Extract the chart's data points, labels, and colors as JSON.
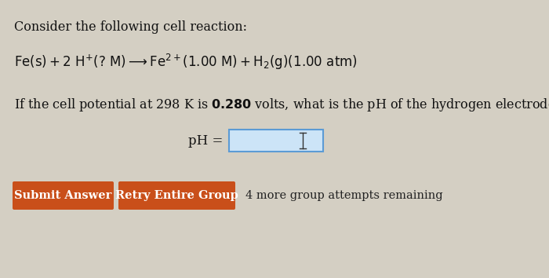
{
  "background_color": "#d4cfc3",
  "title_text": "Consider the following cell reaction:",
  "question_text": "If the cell potential at 298 K is ",
  "question_bold": "0.280",
  "question_text2": " volts, what is the pH of the hydrogen electrode?",
  "ph_label": "pH = ",
  "input_box_color": "#cce4f7",
  "input_box_border": "#5b9bd5",
  "btn1_text": "Submit Answer",
  "btn2_text": "Retry Entire Group",
  "btn_color": "#c94f1a",
  "btn_text_color": "#ffffff",
  "note_text": "4 more group attempts remaining",
  "note_color": "#222222",
  "text_color": "#111111",
  "font_size_title": 11.5,
  "font_size_reaction": 12,
  "font_size_question": 11.5,
  "font_size_ph": 12,
  "font_size_btn": 10.5,
  "font_size_note": 10.5
}
